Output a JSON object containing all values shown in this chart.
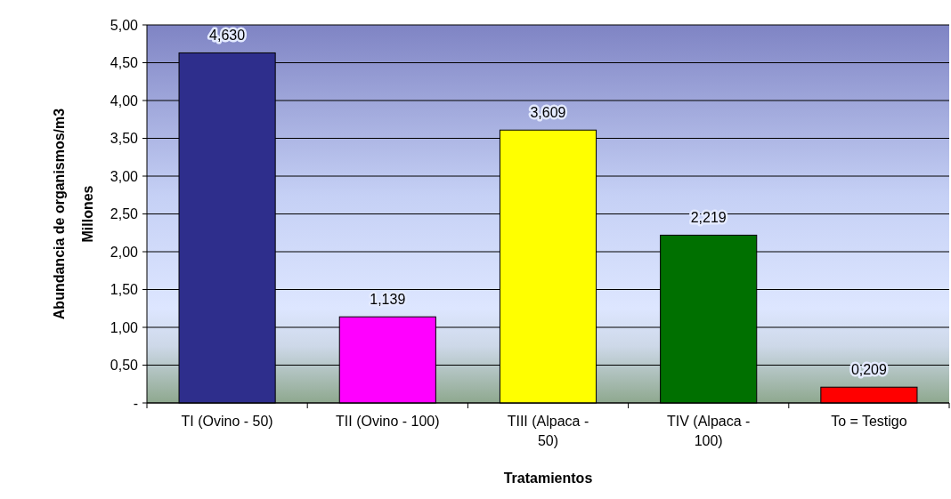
{
  "chart_data": {
    "type": "bar",
    "xlabel": "Tratamientos",
    "ylabel": "Abundancia de organismos/m3",
    "annotations": [
      "Millones"
    ],
    "categories": [
      "TI (Ovino - 50)",
      "TII (Ovino - 100)",
      "TIII (Alpaca - 50)",
      "TIV (Alpaca - 100)",
      "To = Testigo"
    ],
    "values": [
      4.63,
      1.139,
      3.609,
      2.219,
      0.209
    ],
    "value_labels": [
      "4,630",
      "1,139",
      "3,609",
      "2,219",
      "0,209"
    ],
    "colors": [
      "#2e2e8c",
      "#ff00ff",
      "#ffff00",
      "#007000",
      "#ff0000"
    ],
    "ylim": [
      0,
      5
    ],
    "yticks": [
      {
        "value": 0,
        "label": "-"
      },
      {
        "value": 0.5,
        "label": "0,50"
      },
      {
        "value": 1,
        "label": "1,00"
      },
      {
        "value": 1.5,
        "label": "1,50"
      },
      {
        "value": 2,
        "label": "2,00"
      },
      {
        "value": 2.5,
        "label": "2,50"
      },
      {
        "value": 3,
        "label": "3,00"
      },
      {
        "value": 3.5,
        "label": "3,50"
      },
      {
        "value": 4,
        "label": "4,00"
      },
      {
        "value": 4.5,
        "label": "4,50"
      },
      {
        "value": 5,
        "label": "5,00"
      }
    ],
    "grid": "y"
  }
}
